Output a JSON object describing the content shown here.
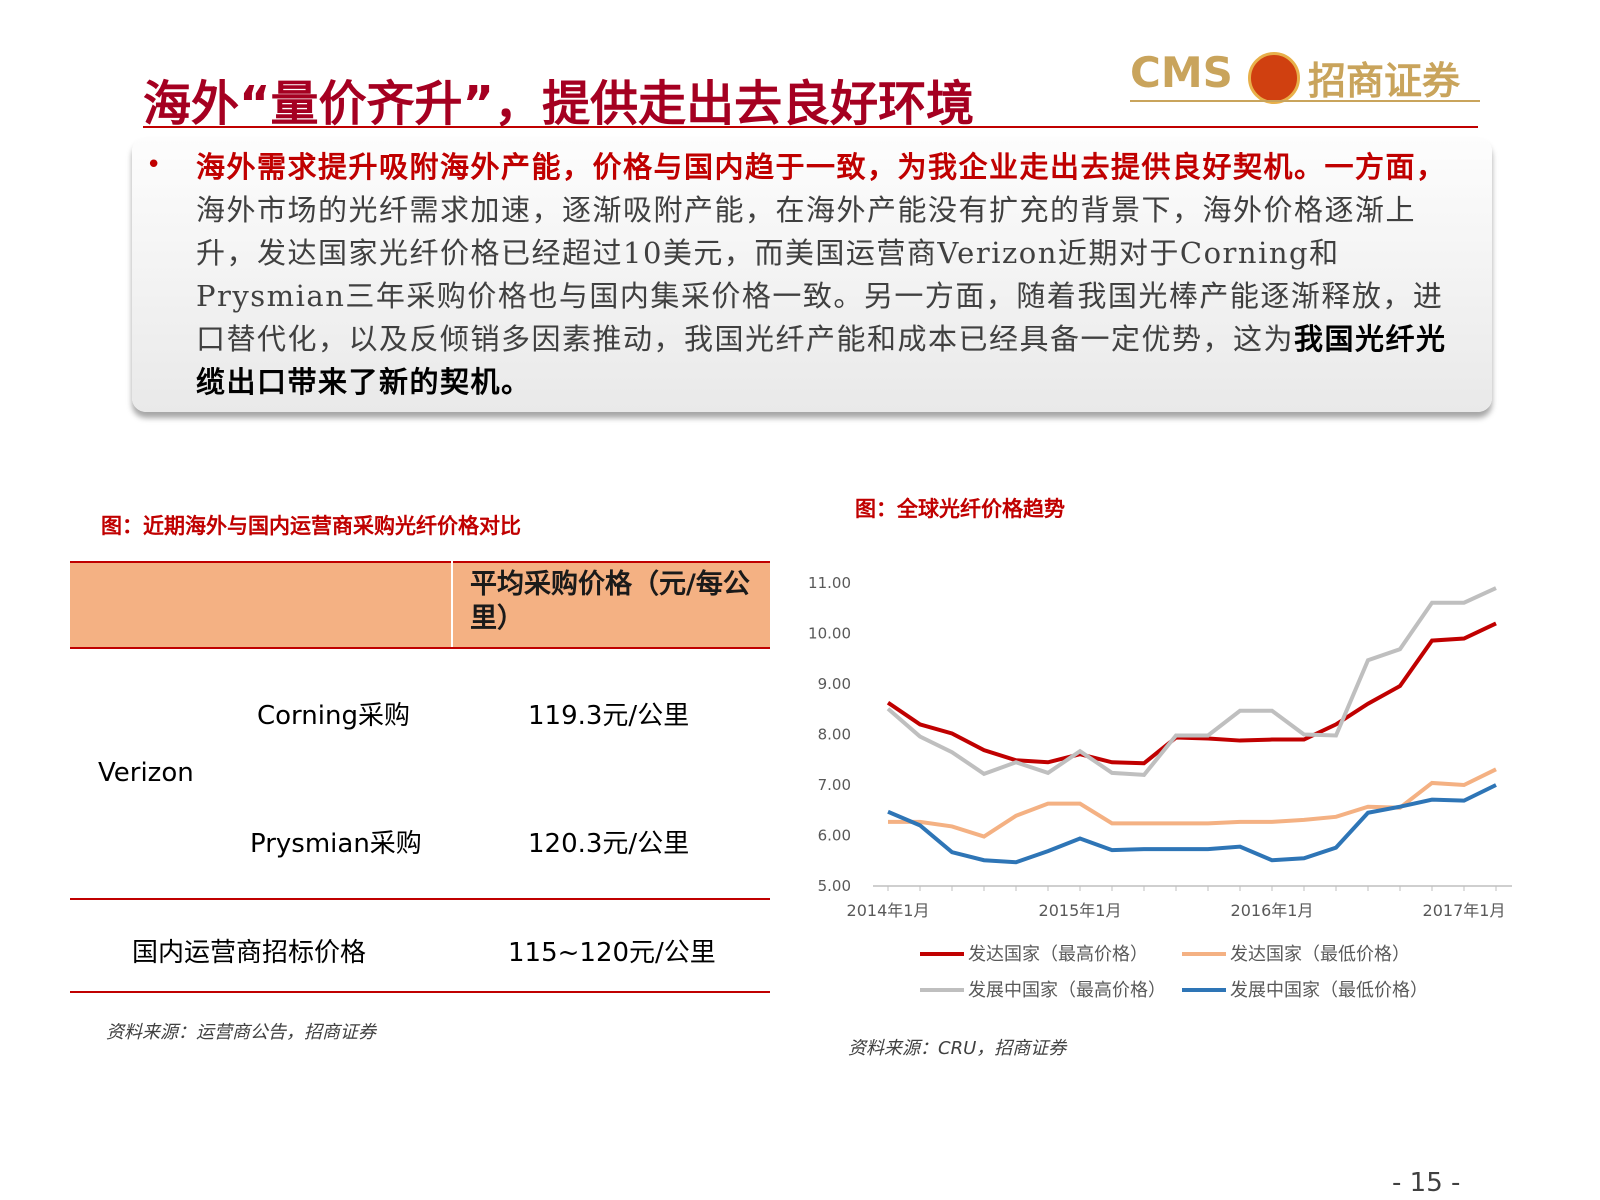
{
  "header": {
    "title": "海外“量价齐升”，提供走出去良好环境",
    "logo": {
      "brand": "CMS",
      "name": "招商证券"
    }
  },
  "bullet": {
    "lead": "海外需求提升吸附海外产能，价格与国内趋于一致，为我企业走出去提供良好契机。一方面，",
    "text": "海外市场的光纤需求加速，逐渐吸附产能，在海外产能没有扩充的背景下，海外价格逐渐上升，发达国家光纤价格已经超过10美元，而美国运营商Verizon近期对于Corning和Prysmian三年采购价格也与国内集采价格一致。另一方面，随着我国光棒产能逐渐释放，进口替代化，以及反倾销多因素推动，我国光纤产能和成本已经具备一定优势，这为",
    "ending": "我国光纤光缆出口带来了新的契机。"
  },
  "table": {
    "title": "图：近期海外与国内运营商采购光纤价格对比",
    "header": "平均采购价格（元/每公里）",
    "group": "Verizon",
    "rows": [
      [
        "Corning采购",
        "119.3元/公里"
      ],
      [
        "Prysmian采购",
        "120.3元/公里"
      ]
    ],
    "domestic": [
      "国内运营商招标价格",
      "115~120元/公里"
    ],
    "source": "资料来源：运营商公告，招商证券"
  },
  "chart_data": {
    "type": "line",
    "title": "图：全球光纤价格趋势",
    "source": "资料来源：CRU，招商证券",
    "categories": [
      "2014年1月",
      null,
      null,
      null,
      null,
      null,
      "2015年1月",
      null,
      null,
      null,
      null,
      null,
      "2016年1月",
      null,
      null,
      null,
      null,
      null,
      "2017年1月",
      null
    ],
    "ylim": [
      5,
      11
    ],
    "yticks": [
      {
        "value": 5,
        "label": "5.00"
      },
      {
        "value": 6,
        "label": "6.00"
      },
      {
        "value": 7,
        "label": "7.00"
      },
      {
        "value": 8,
        "label": "8.00"
      },
      {
        "value": 9,
        "label": "9.00"
      },
      {
        "value": 10,
        "label": "10.00"
      },
      {
        "value": 11,
        "label": "11.00"
      }
    ],
    "series": [
      {
        "name": "发达国家（最高价格）",
        "color": "#c00000",
        "values": [
          8.63,
          8.2,
          8.02,
          7.69,
          7.49,
          7.45,
          7.61,
          7.45,
          7.43,
          7.94,
          7.92,
          7.88,
          7.9,
          7.9,
          8.2,
          8.61,
          8.96,
          9.86,
          9.9,
          10.2
        ]
      },
      {
        "name": "发达国家（最低价格）",
        "color": "#f4b183",
        "values": [
          6.27,
          6.27,
          6.18,
          5.98,
          6.39,
          6.63,
          6.63,
          6.24,
          6.24,
          6.24,
          6.24,
          6.27,
          6.27,
          6.31,
          6.37,
          6.57,
          6.55,
          7.04,
          7.0,
          7.31
        ]
      },
      {
        "name": "发展中国家（最高价格）",
        "color": "#bfbfbf",
        "values": [
          8.51,
          7.96,
          7.65,
          7.22,
          7.45,
          7.24,
          7.67,
          7.24,
          7.2,
          7.98,
          7.98,
          8.47,
          8.47,
          8.0,
          7.98,
          9.47,
          9.69,
          10.61,
          10.61,
          10.9
        ]
      },
      {
        "name": "发展中国家（最低价格）",
        "color": "#2e75b6",
        "values": [
          6.47,
          6.2,
          5.67,
          5.51,
          5.47,
          5.69,
          5.94,
          5.71,
          5.73,
          5.73,
          5.73,
          5.78,
          5.51,
          5.55,
          5.76,
          6.45,
          6.57,
          6.71,
          6.69,
          7.0
        ]
      }
    ]
  },
  "footer": {
    "page": "- 15 -"
  }
}
